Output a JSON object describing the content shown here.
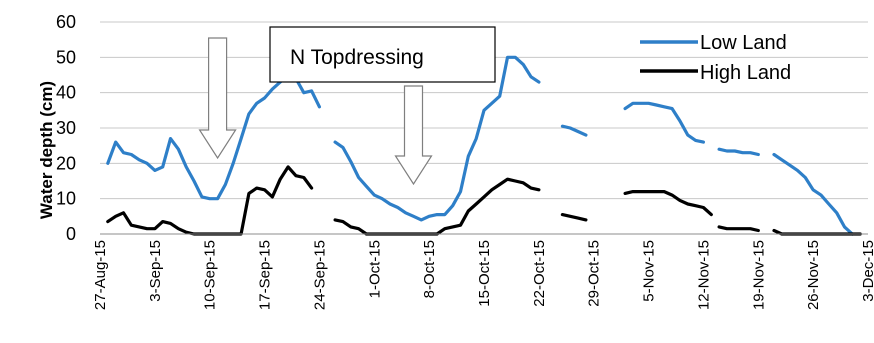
{
  "chart_data": {
    "type": "line",
    "title": "",
    "xlabel": "",
    "ylabel": "Water depth (cm)",
    "ylim": [
      0,
      60
    ],
    "yticks": [
      0,
      10,
      20,
      30,
      40,
      50,
      60
    ],
    "xlim": [
      "2015-08-27",
      "2015-12-03"
    ],
    "xticks": [
      {
        "date": "2015-08-27",
        "label": "27-Aug-15"
      },
      {
        "date": "2015-09-03",
        "label": "3-Sep-15"
      },
      {
        "date": "2015-09-10",
        "label": "10-Sep-15"
      },
      {
        "date": "2015-09-17",
        "label": "17-Sep-15"
      },
      {
        "date": "2015-09-24",
        "label": "24-Sep-15"
      },
      {
        "date": "2015-10-01",
        "label": "1-Oct-15"
      },
      {
        "date": "2015-10-08",
        "label": "8-Oct-15"
      },
      {
        "date": "2015-10-15",
        "label": "15-Oct-15"
      },
      {
        "date": "2015-10-22",
        "label": "22-Oct-15"
      },
      {
        "date": "2015-10-29",
        "label": "29-Oct-15"
      },
      {
        "date": "2015-11-05",
        "label": "5-Nov-15"
      },
      {
        "date": "2015-11-12",
        "label": "12-Nov-15"
      },
      {
        "date": "2015-11-19",
        "label": "19-Nov-15"
      },
      {
        "date": "2015-11-26",
        "label": "26-Nov-15"
      },
      {
        "date": "2015-12-03",
        "label": "3-Dec-15"
      }
    ],
    "grid": "horizontal",
    "legend_position": "top-right",
    "annotations": [
      {
        "text": "N Topdressing",
        "arrows": [
          "2015-09-11",
          "2015-10-06"
        ]
      }
    ],
    "series": [
      {
        "name": "Low Land",
        "color": "#2e7fc8",
        "segments": [
          [
            [
              "2015-08-28",
              20
            ],
            [
              "2015-08-29",
              26
            ],
            [
              "2015-08-30",
              23
            ],
            [
              "2015-08-31",
              22.5
            ],
            [
              "2015-09-01",
              21
            ],
            [
              "2015-09-02",
              20
            ],
            [
              "2015-09-03",
              18
            ],
            [
              "2015-09-04",
              19
            ],
            [
              "2015-09-05",
              27
            ],
            [
              "2015-09-06",
              24
            ],
            [
              "2015-09-07",
              19
            ],
            [
              "2015-09-08",
              15
            ],
            [
              "2015-09-09",
              10.5
            ],
            [
              "2015-09-10",
              10
            ],
            [
              "2015-09-11",
              10
            ],
            [
              "2015-09-12",
              14
            ],
            [
              "2015-09-13",
              20
            ],
            [
              "2015-09-14",
              27
            ],
            [
              "2015-09-15",
              34
            ],
            [
              "2015-09-16",
              37
            ],
            [
              "2015-09-17",
              38.5
            ],
            [
              "2015-09-18",
              41
            ],
            [
              "2015-09-19",
              43
            ],
            [
              "2015-09-20",
              45
            ],
            [
              "2015-09-21",
              44
            ],
            [
              "2015-09-22",
              40
            ],
            [
              "2015-09-23",
              40.5
            ],
            [
              "2015-09-24",
              36
            ]
          ],
          [
            [
              "2015-09-26",
              26
            ],
            [
              "2015-09-27",
              24.5
            ],
            [
              "2015-09-28",
              20.5
            ],
            [
              "2015-09-29",
              16
            ],
            [
              "2015-09-30",
              13.5
            ],
            [
              "2015-10-01",
              11
            ],
            [
              "2015-10-02",
              10
            ],
            [
              "2015-10-03",
              8.5
            ],
            [
              "2015-10-04",
              7.5
            ],
            [
              "2015-10-05",
              6
            ],
            [
              "2015-10-06",
              5
            ],
            [
              "2015-10-07",
              4
            ],
            [
              "2015-10-08",
              5
            ],
            [
              "2015-10-09",
              5.5
            ],
            [
              "2015-10-10",
              5.5
            ],
            [
              "2015-10-11",
              8
            ],
            [
              "2015-10-12",
              12
            ],
            [
              "2015-10-13",
              22
            ],
            [
              "2015-10-14",
              27
            ],
            [
              "2015-10-15",
              35
            ],
            [
              "2015-10-16",
              37
            ],
            [
              "2015-10-17",
              39
            ],
            [
              "2015-10-18",
              50
            ],
            [
              "2015-10-19",
              50
            ],
            [
              "2015-10-20",
              48
            ],
            [
              "2015-10-21",
              44.5
            ],
            [
              "2015-10-22",
              43
            ]
          ],
          [
            [
              "2015-10-25",
              30.5
            ],
            [
              "2015-10-26",
              30
            ],
            [
              "2015-10-27",
              29
            ],
            [
              "2015-10-28",
              28
            ]
          ],
          [
            [
              "2015-11-02",
              35.5
            ],
            [
              "2015-11-03",
              37
            ],
            [
              "2015-11-04",
              37
            ],
            [
              "2015-11-05",
              37
            ],
            [
              "2015-11-06",
              36.5
            ],
            [
              "2015-11-07",
              36
            ],
            [
              "2015-11-08",
              35.5
            ],
            [
              "2015-11-09",
              32
            ],
            [
              "2015-11-10",
              28
            ],
            [
              "2015-11-11",
              26.5
            ],
            [
              "2015-11-12",
              26
            ]
          ],
          [
            [
              "2015-11-14",
              24
            ],
            [
              "2015-11-15",
              23.5
            ],
            [
              "2015-11-16",
              23.5
            ],
            [
              "2015-11-17",
              23
            ],
            [
              "2015-11-18",
              23
            ],
            [
              "2015-11-19",
              22.5
            ]
          ],
          [
            [
              "2015-11-21",
              22.5
            ],
            [
              "2015-11-22",
              21
            ],
            [
              "2015-11-23",
              19.5
            ],
            [
              "2015-11-24",
              18
            ],
            [
              "2015-11-25",
              16
            ],
            [
              "2015-11-26",
              12.5
            ],
            [
              "2015-11-27",
              11
            ],
            [
              "2015-11-28",
              8.5
            ],
            [
              "2015-11-29",
              6
            ],
            [
              "2015-11-30",
              2
            ],
            [
              "2015-12-01",
              0
            ]
          ]
        ]
      },
      {
        "name": "High Land",
        "color": "#000000",
        "segments": [
          [
            [
              "2015-08-28",
              3.5
            ],
            [
              "2015-08-29",
              5
            ],
            [
              "2015-08-30",
              6
            ],
            [
              "2015-08-31",
              2.5
            ],
            [
              "2015-09-01",
              2
            ],
            [
              "2015-09-02",
              1.5
            ],
            [
              "2015-09-03",
              1.5
            ],
            [
              "2015-09-04",
              3.5
            ],
            [
              "2015-09-05",
              3
            ],
            [
              "2015-09-06",
              1.5
            ],
            [
              "2015-09-07",
              0.5
            ],
            [
              "2015-09-08",
              0
            ],
            [
              "2015-09-09",
              0
            ],
            [
              "2015-09-10",
              0
            ],
            [
              "2015-09-11",
              0
            ],
            [
              "2015-09-12",
              0
            ],
            [
              "2015-09-13",
              0
            ],
            [
              "2015-09-14",
              0
            ],
            [
              "2015-09-15",
              11.5
            ],
            [
              "2015-09-16",
              13
            ],
            [
              "2015-09-17",
              12.5
            ],
            [
              "2015-09-18",
              10.5
            ],
            [
              "2015-09-19",
              15.5
            ],
            [
              "2015-09-20",
              19
            ],
            [
              "2015-09-21",
              16.5
            ],
            [
              "2015-09-22",
              16
            ],
            [
              "2015-09-23",
              13
            ]
          ],
          [
            [
              "2015-09-26",
              4
            ],
            [
              "2015-09-27",
              3.5
            ],
            [
              "2015-09-28",
              2
            ],
            [
              "2015-09-29",
              1.5
            ],
            [
              "2015-09-30",
              0
            ],
            [
              "2015-10-01",
              0
            ],
            [
              "2015-10-02",
              0
            ],
            [
              "2015-10-03",
              0
            ],
            [
              "2015-10-04",
              0
            ],
            [
              "2015-10-05",
              0
            ],
            [
              "2015-10-06",
              0
            ],
            [
              "2015-10-07",
              0
            ],
            [
              "2015-10-08",
              0
            ],
            [
              "2015-10-09",
              0
            ],
            [
              "2015-10-10",
              1.5
            ],
            [
              "2015-10-11",
              2
            ],
            [
              "2015-10-12",
              2.5
            ],
            [
              "2015-10-13",
              6.5
            ],
            [
              "2015-10-14",
              8.5
            ],
            [
              "2015-10-15",
              10.5
            ],
            [
              "2015-10-16",
              12.5
            ],
            [
              "2015-10-17",
              14
            ],
            [
              "2015-10-18",
              15.5
            ],
            [
              "2015-10-19",
              15
            ],
            [
              "2015-10-20",
              14.5
            ],
            [
              "2015-10-21",
              13
            ],
            [
              "2015-10-22",
              12.5
            ]
          ],
          [
            [
              "2015-10-25",
              5.5
            ],
            [
              "2015-10-26",
              5
            ],
            [
              "2015-10-27",
              4.5
            ],
            [
              "2015-10-28",
              4
            ]
          ],
          [
            [
              "2015-11-02",
              11.5
            ],
            [
              "2015-11-03",
              12
            ],
            [
              "2015-11-04",
              12
            ],
            [
              "2015-11-05",
              12
            ],
            [
              "2015-11-06",
              12
            ],
            [
              "2015-11-07",
              12
            ],
            [
              "2015-11-08",
              11
            ],
            [
              "2015-11-09",
              9.5
            ],
            [
              "2015-11-10",
              8.5
            ],
            [
              "2015-11-11",
              8
            ],
            [
              "2015-11-12",
              7.5
            ],
            [
              "2015-11-13",
              5.5
            ]
          ],
          [
            [
              "2015-11-14",
              2
            ],
            [
              "2015-11-15",
              1.5
            ],
            [
              "2015-11-16",
              1.5
            ],
            [
              "2015-11-17",
              1.5
            ],
            [
              "2015-11-18",
              1.5
            ],
            [
              "2015-11-19",
              1
            ]
          ],
          [
            [
              "2015-11-21",
              1
            ],
            [
              "2015-11-22",
              0
            ],
            [
              "2015-11-23",
              0
            ],
            [
              "2015-11-24",
              0
            ],
            [
              "2015-11-25",
              0
            ],
            [
              "2015-11-26",
              0
            ],
            [
              "2015-11-27",
              0
            ],
            [
              "2015-11-28",
              0
            ],
            [
              "2015-11-29",
              0
            ],
            [
              "2015-11-30",
              0
            ],
            [
              "2015-12-01",
              0
            ],
            [
              "2015-12-02",
              0
            ]
          ]
        ]
      }
    ]
  }
}
